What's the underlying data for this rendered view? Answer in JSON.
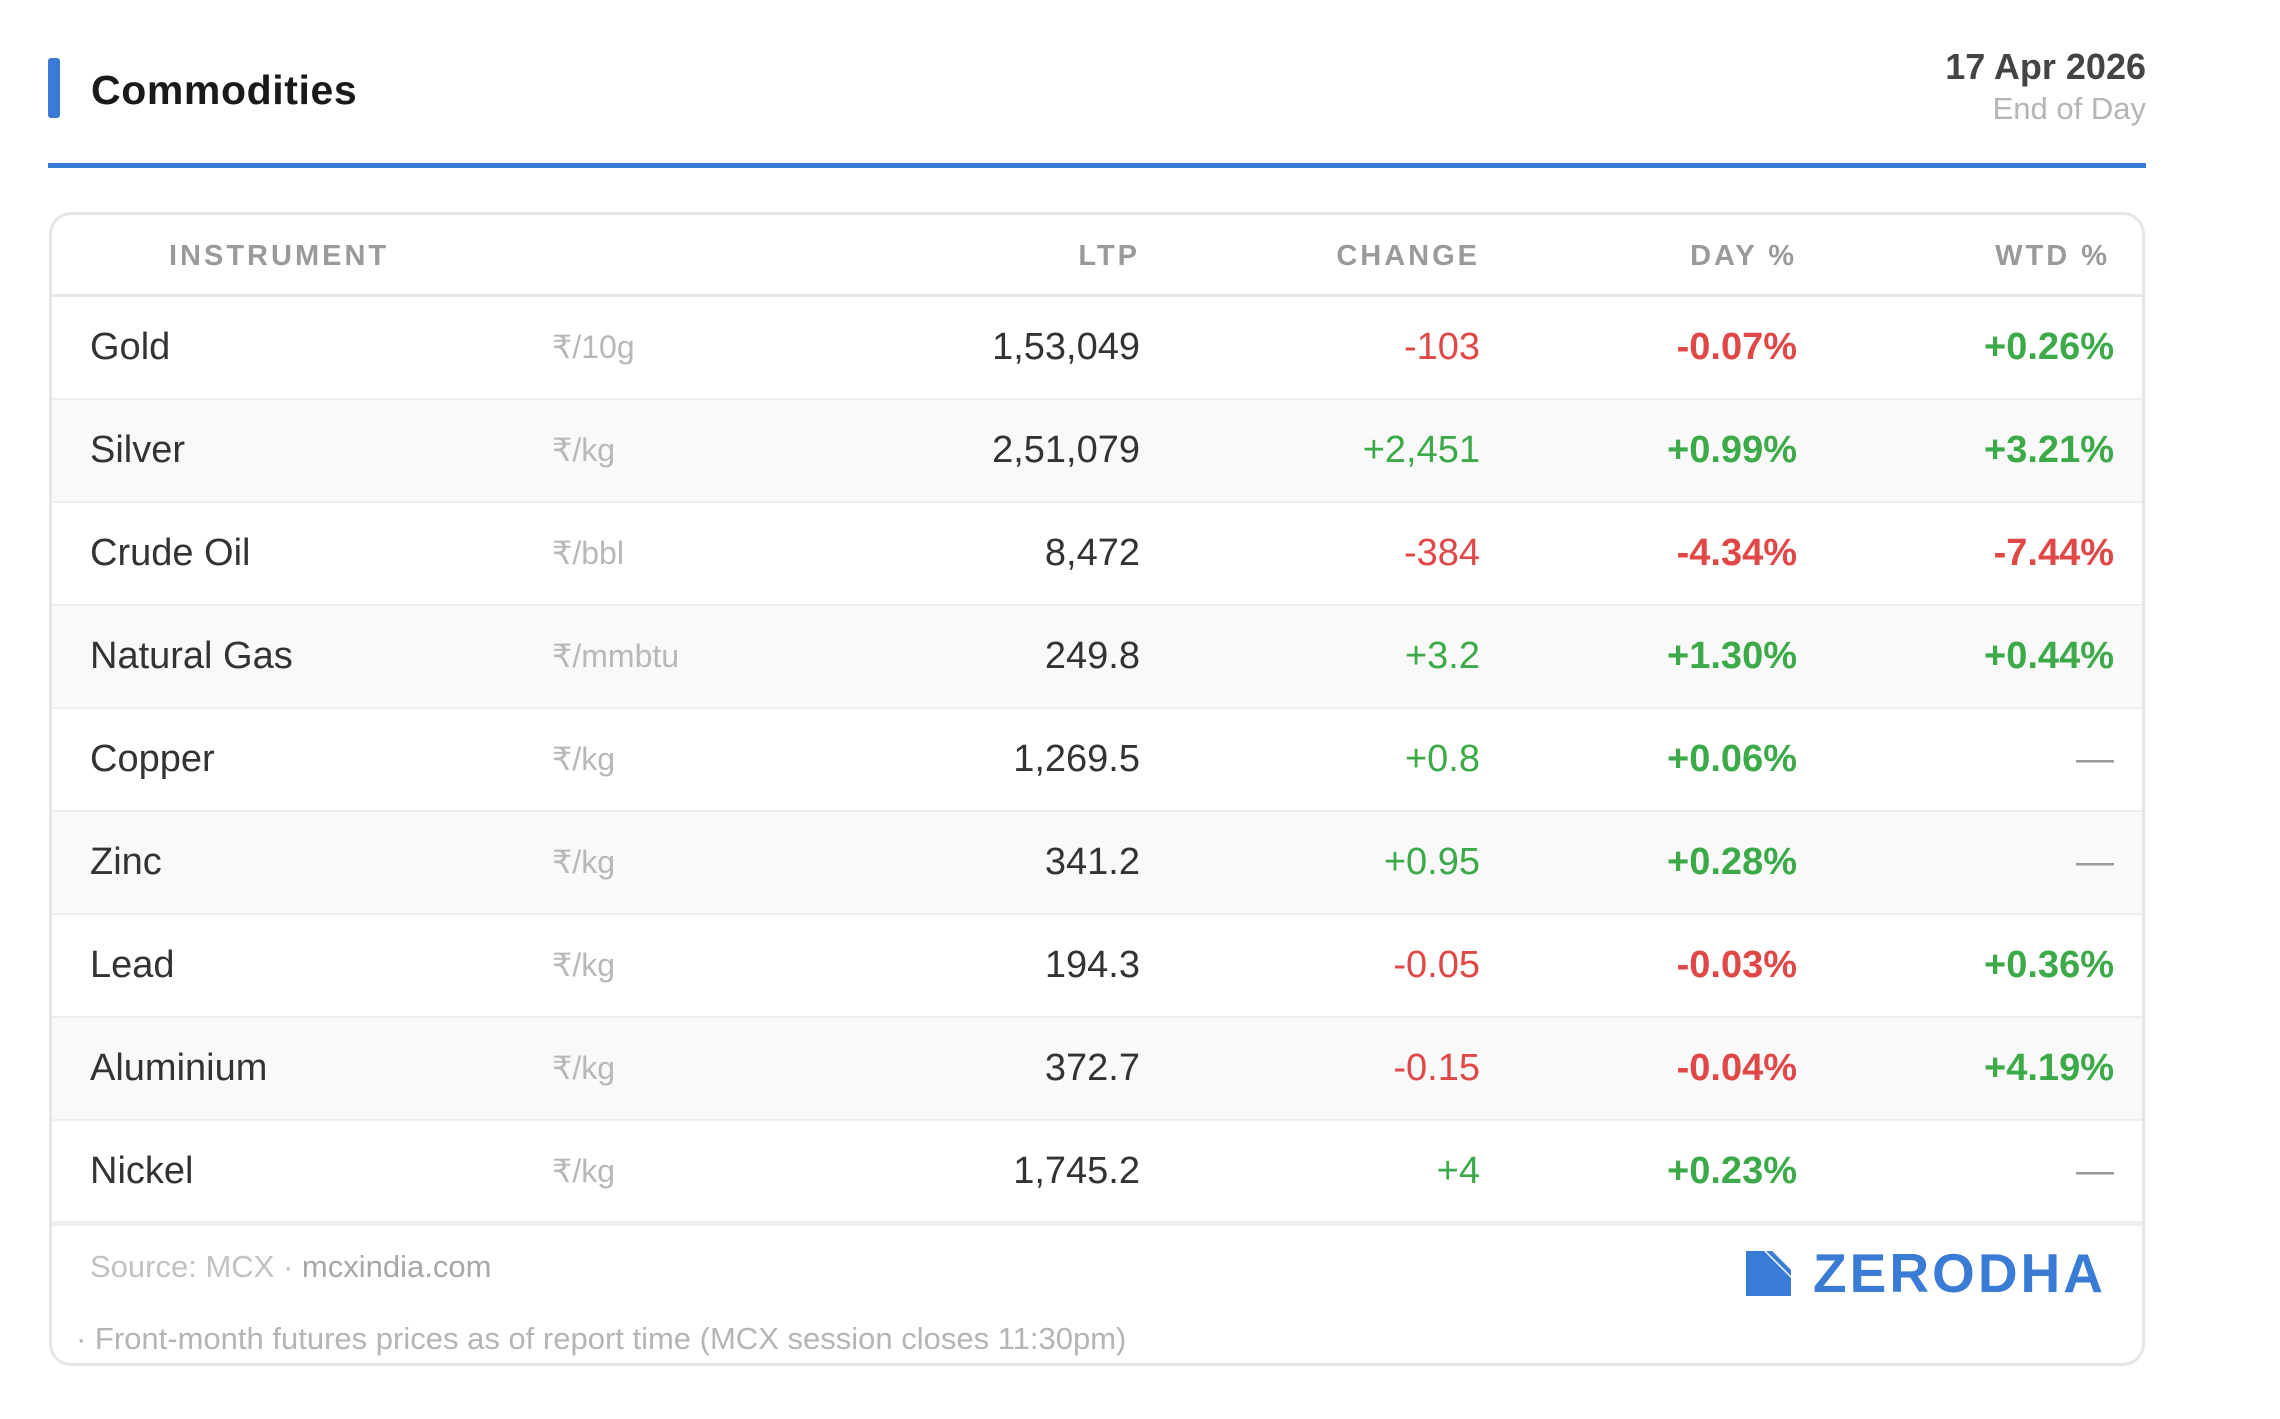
{
  "header": {
    "title": "Commodities",
    "date": "17 Apr 2026",
    "subtitle": "End of Day",
    "accent_color": "#3a7bd5"
  },
  "table": {
    "columns": {
      "instrument": "INSTRUMENT",
      "ltp": "LTP",
      "change": "CHANGE",
      "day_pct": "DAY %",
      "wtd_pct": "WTD %"
    },
    "rows": [
      {
        "name": "Gold",
        "unit": "₹/10g",
        "ltp": "1,53,049",
        "change": "-103",
        "change_dir": "neg",
        "day": "-0.07%",
        "day_dir": "neg",
        "wtd": "+0.26%",
        "wtd_dir": "pos"
      },
      {
        "name": "Silver",
        "unit": "₹/kg",
        "ltp": "2,51,079",
        "change": "+2,451",
        "change_dir": "pos",
        "day": "+0.99%",
        "day_dir": "pos",
        "wtd": "+3.21%",
        "wtd_dir": "pos"
      },
      {
        "name": "Crude Oil",
        "unit": "₹/bbl",
        "ltp": "8,472",
        "change": "-384",
        "change_dir": "neg",
        "day": "-4.34%",
        "day_dir": "neg",
        "wtd": "-7.44%",
        "wtd_dir": "neg"
      },
      {
        "name": "Natural Gas",
        "unit": "₹/mmbtu",
        "ltp": "249.8",
        "change": "+3.2",
        "change_dir": "pos",
        "day": "+1.30%",
        "day_dir": "pos",
        "wtd": "+0.44%",
        "wtd_dir": "pos"
      },
      {
        "name": "Copper",
        "unit": "₹/kg",
        "ltp": "1,269.5",
        "change": "+0.8",
        "change_dir": "pos",
        "day": "+0.06%",
        "day_dir": "pos",
        "wtd": "—",
        "wtd_dir": "nil"
      },
      {
        "name": "Zinc",
        "unit": "₹/kg",
        "ltp": "341.2",
        "change": "+0.95",
        "change_dir": "pos",
        "day": "+0.28%",
        "day_dir": "pos",
        "wtd": "—",
        "wtd_dir": "nil"
      },
      {
        "name": "Lead",
        "unit": "₹/kg",
        "ltp": "194.3",
        "change": "-0.05",
        "change_dir": "neg",
        "day": "-0.03%",
        "day_dir": "neg",
        "wtd": "+0.36%",
        "wtd_dir": "pos"
      },
      {
        "name": "Aluminium",
        "unit": "₹/kg",
        "ltp": "372.7",
        "change": "-0.15",
        "change_dir": "neg",
        "day": "-0.04%",
        "day_dir": "neg",
        "wtd": "+4.19%",
        "wtd_dir": "pos"
      },
      {
        "name": "Nickel",
        "unit": "₹/kg",
        "ltp": "1,745.2",
        "change": "+4",
        "change_dir": "pos",
        "day": "+0.23%",
        "day_dir": "pos",
        "wtd": "—",
        "wtd_dir": "nil"
      }
    ]
  },
  "footer": {
    "source_prefix": "Source: MCX · ",
    "source_link": "mcxindia.com",
    "note": "· Front-month futures prices as of report time (MCX session closes 11:30pm)",
    "brand_name": "ZERODHA",
    "brand_icon": "zerodha-logo-icon"
  },
  "colors": {
    "positive": "#3daa4a",
    "negative": "#e04848",
    "brand": "#3a7bd5"
  }
}
